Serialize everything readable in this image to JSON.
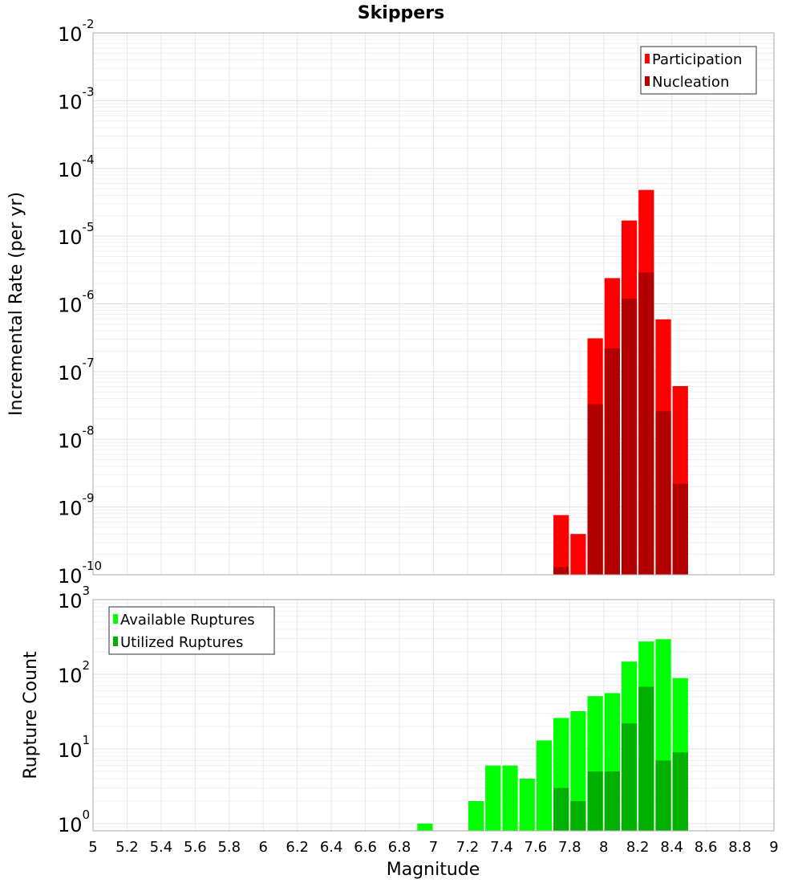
{
  "chart_data": [
    {
      "type": "bar",
      "title": "Skippers",
      "xlabel": "Magnitude",
      "ylabel": "Incremental Rate (per yr)",
      "yscale": "log",
      "ylim": [
        1e-10,
        0.01
      ],
      "xlim": [
        5,
        9
      ],
      "grid": true,
      "legend_position": "top-right",
      "ytick_exponents": [
        "-2",
        "-3",
        "-4",
        "-5",
        "-6",
        "-7",
        "-8",
        "-9",
        "-10"
      ],
      "x": [
        7.75,
        7.85,
        7.95,
        8.05,
        8.15,
        8.25,
        8.35,
        8.45
      ],
      "series": [
        {
          "name": "Participation",
          "color": "#ff0000",
          "values": [
            7.6e-10,
            4e-10,
            3.1e-07,
            2.4e-06,
            1.7e-05,
            4.8e-05,
            5.9e-07,
            6.1e-08
          ]
        },
        {
          "name": "Nucleation",
          "color": "#b20000",
          "values": [
            1.3e-10,
            null,
            3.3e-08,
            2.2e-07,
            1.2e-06,
            2.9e-06,
            2.6e-08,
            2.2e-09
          ]
        }
      ]
    },
    {
      "type": "bar",
      "xlabel": "Magnitude",
      "ylabel": "Rupture Count",
      "yscale": "log",
      "ylim": [
        0.8,
        1000
      ],
      "xlim": [
        5,
        9
      ],
      "grid": true,
      "legend_position": "top-left",
      "ytick_exponents": [
        "3",
        "2",
        "1",
        "0"
      ],
      "xticks": [
        "5",
        "5.2",
        "5.4",
        "5.6",
        "5.8",
        "6",
        "6.2",
        "6.4",
        "6.6",
        "6.8",
        "7",
        "7.2",
        "7.4",
        "7.6",
        "7.8",
        "8",
        "8.2",
        "8.4",
        "8.6",
        "8.8",
        "9"
      ],
      "x": [
        6.95,
        7.25,
        7.35,
        7.45,
        7.55,
        7.65,
        7.75,
        7.85,
        7.95,
        8.05,
        8.15,
        8.25,
        8.35,
        8.45
      ],
      "series": [
        {
          "name": "Available Ruptures",
          "color": "#00ff00",
          "values": [
            1,
            2,
            6,
            6,
            4,
            13,
            26,
            32,
            51,
            56,
            148,
            275,
            295,
            89
          ]
        },
        {
          "name": "Utilized Ruptures",
          "color": "#00b000",
          "values": [
            null,
            null,
            null,
            null,
            null,
            null,
            3,
            2,
            5,
            5,
            22,
            68,
            7,
            9
          ]
        }
      ]
    }
  ]
}
